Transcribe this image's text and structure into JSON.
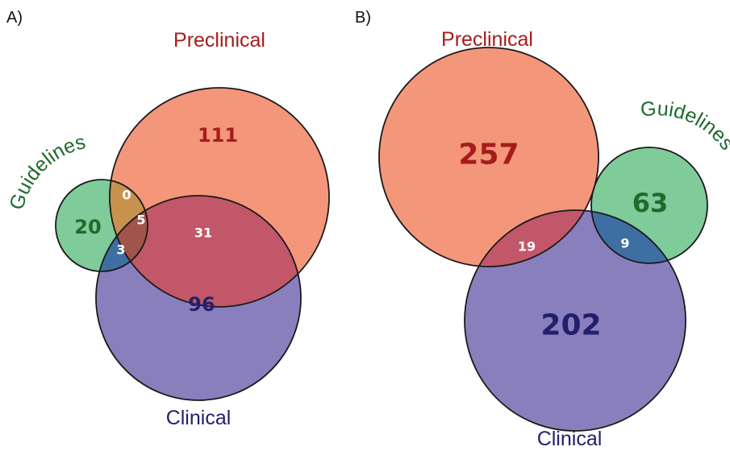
{
  "colors": {
    "preclinical": "#f4967a",
    "clinical": "#8a7fbd",
    "guidelines": "#7fcb9a",
    "pre_cli": "#c3576a",
    "pre_gui": "#c8924e",
    "gui_cli": "#3e6fa3",
    "all_three": "#a0544a",
    "preclinical_text": "#a61c1c",
    "clinical_text": "#22206b",
    "guidelines_text": "#1e6b2c"
  },
  "panel_a": {
    "label": "A)",
    "preclinical_label": "Preclinical",
    "guidelines_label": "Guidelines",
    "clinical_label": "Clinical",
    "counts": {
      "preclinical_only": "111",
      "clinical_only": "96",
      "guidelines_only": "20",
      "pre_gui": "0",
      "all_three": "5",
      "gui_cli": "3",
      "pre_cli": "31"
    }
  },
  "panel_b": {
    "label": "B)",
    "preclinical_label": "Preclinical",
    "guidelines_label": "Guidelines",
    "clinical_label": "Clinical",
    "counts": {
      "preclinical_only": "257",
      "guidelines_only": "63",
      "clinical_only": "202",
      "pre_cli": "19",
      "gui_cli": "9"
    }
  }
}
